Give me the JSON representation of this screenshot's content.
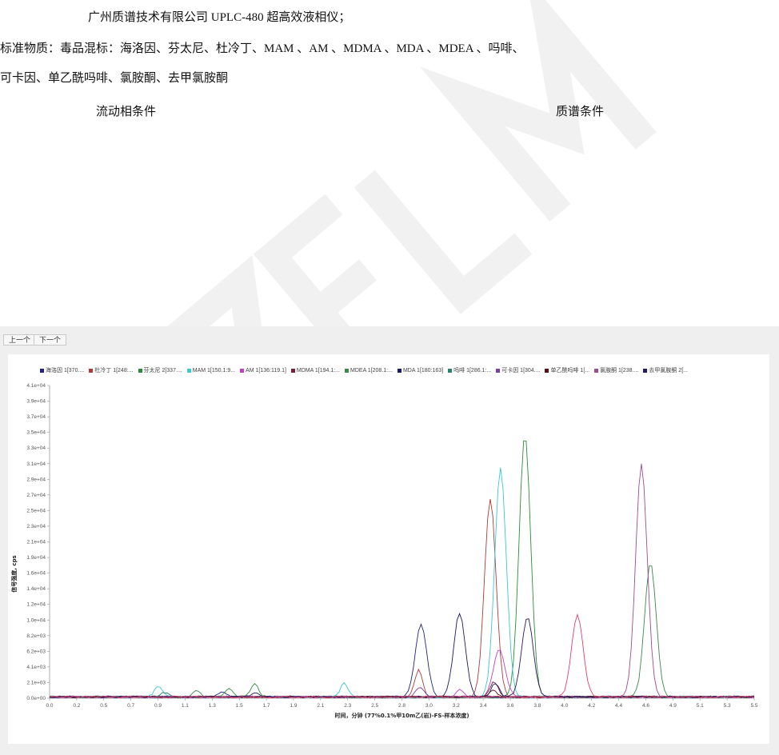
{
  "document": {
    "line1": "广州质谱技术有限公司  UPLC-480 超高效液相仪；",
    "line2": "标准物质：毒品混标：海洛因、芬太尼、杜冷丁、MAM 、AM 、MDMA 、MDA 、MDEA 、吗啡、",
    "line3": "可卡因、单乙酰吗啡、氯胺酮、去甲氯胺酮",
    "mobile_phase_heading": "流动相条件",
    "ms_heading": "质谱条件",
    "watermark": "GZFLM"
  },
  "toolbar": {
    "prev_label": "上一个",
    "next_label": "下一个"
  },
  "chart_data": {
    "type": "line",
    "xlabel": "时间，分钟 (77%0.1%甲10m乙(岩)-FS-样本浓度)",
    "ylabel": "信号强度, cps",
    "xlim": [
      0.0,
      5.5
    ],
    "ylim": [
      0,
      41000
    ],
    "grid": false,
    "legend_placement": "top",
    "x_ticks": [
      "0.0",
      "0.2",
      "0.5",
      "0.7",
      "0.9",
      "1.1",
      "1.3",
      "1.5",
      "1.7",
      "1.9",
      "2.1",
      "2.3",
      "2.5",
      "2.8",
      "3.0",
      "3.2",
      "3.4",
      "3.6",
      "3.8",
      "4.0",
      "4.2",
      "4.4",
      "4.6",
      "4.9",
      "5.1",
      "5.3",
      "5.5"
    ],
    "y_ticks": [
      "0.0e+00",
      "2.1e+03",
      "4.1e+03",
      "6.2e+03",
      "8.2e+03",
      "1.0e+04",
      "1.2e+04",
      "1.4e+04",
      "1.6e+04",
      "1.9e+04",
      "2.1e+04",
      "2.3e+04",
      "2.5e+04",
      "2.7e+04",
      "2.9e+04",
      "3.1e+04",
      "3.3e+04",
      "3.5e+04",
      "3.7e+04",
      "3.9e+04",
      "4.1e+04"
    ],
    "series": [
      {
        "name": "海洛因 1[370....",
        "color": "#23237a",
        "peaks": [
          [
            2.9,
            9500
          ],
          [
            1.35,
            700
          ]
        ]
      },
      {
        "name": "杜冷丁 1[248:...",
        "color": "#b03a3a",
        "peaks": [
          [
            2.88,
            3500
          ],
          [
            3.44,
            26000
          ]
        ]
      },
      {
        "name": "芬太尼 2[337....",
        "color": "#2e8b3a",
        "peaks": [
          [
            3.71,
            34500
          ],
          [
            1.6,
            1700
          ],
          [
            1.4,
            1200
          ]
        ]
      },
      {
        "name": "MAM 1[150.1:9...",
        "color": "#3cc8d0",
        "peaks": [
          [
            3.52,
            30000
          ],
          [
            0.85,
            1500
          ],
          [
            2.3,
            1800
          ]
        ]
      },
      {
        "name": "AM 1[136:119.1]",
        "color": "#c040c0",
        "peaks": [
          [
            3.51,
            6300
          ],
          [
            3.2,
            900
          ]
        ]
      },
      {
        "name": "MDMA 1[194.1:...",
        "color": "#7a1f3f",
        "peaks": [
          [
            3.47,
            2000
          ]
        ]
      },
      {
        "name": "MDEA 1[208.1:...",
        "color": "#3a8a4a",
        "peaks": [
          [
            4.69,
            17500
          ],
          [
            1.15,
            800
          ]
        ]
      },
      {
        "name": "MDA 1[180:163]",
        "color": "#1a1a66",
        "peaks": [
          [
            3.2,
            11000
          ],
          [
            3.48,
            1800
          ]
        ]
      },
      {
        "name": "吗啡 1[286.1:...",
        "color": "#2f7f6f",
        "peaks": [
          [
            0.9,
            600
          ]
        ]
      },
      {
        "name": "可卡因 1[304....",
        "color": "#7a3f9f",
        "peaks": [
          [
            2.89,
            1200
          ]
        ]
      },
      {
        "name": "单乙酰吗啡 1[...",
        "color": "#5a1010",
        "peaks": [
          [
            3.46,
            900
          ]
        ]
      },
      {
        "name": "氯胺酮 1[238....",
        "color": "#a04a90",
        "peaks": [
          [
            4.62,
            30500
          ]
        ]
      },
      {
        "name": "去甲氯胺酮 2[...",
        "color": "#2a1a5a",
        "peaks": [
          [
            3.73,
            10500
          ],
          [
            1.6,
            500
          ]
        ]
      },
      {
        "name": "",
        "color": "#e0406a",
        "peaks": [
          [
            4.12,
            10700
          ]
        ]
      }
    ]
  }
}
